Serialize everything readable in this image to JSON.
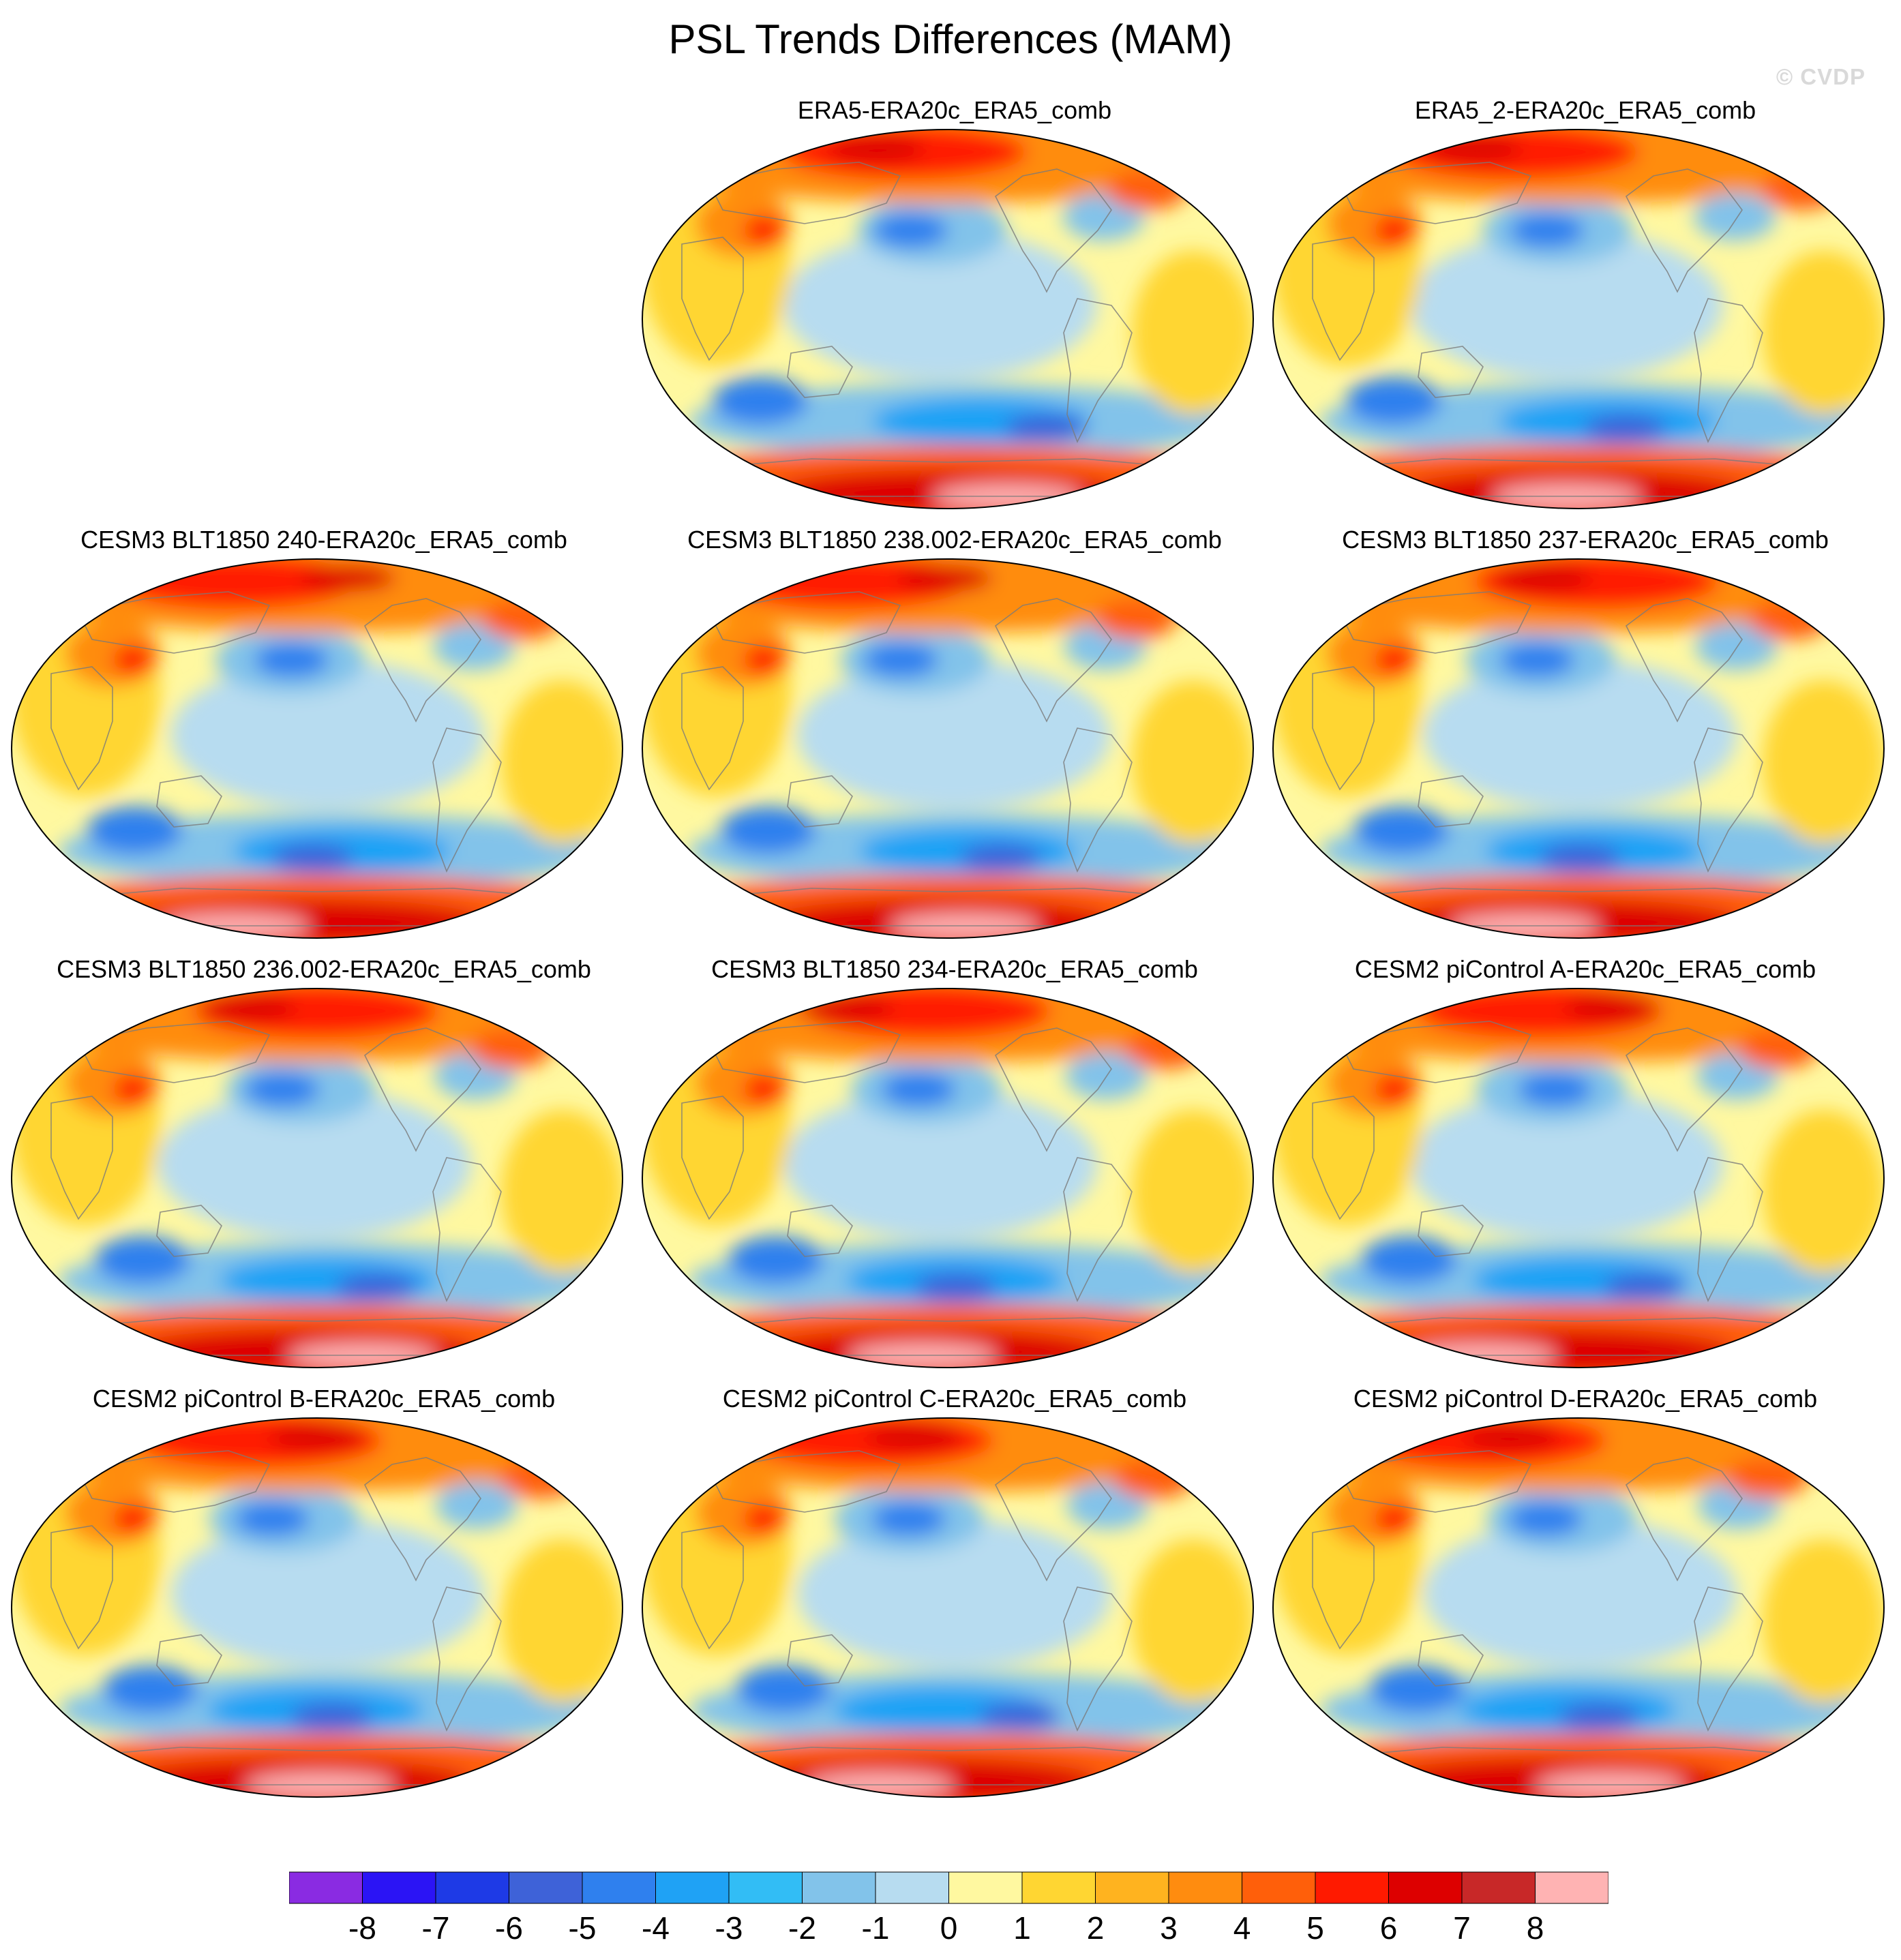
{
  "title": "PSL Trends Differences (MAM)",
  "watermark": "© CVDP",
  "panels": [
    {
      "label": "ERA5-ERA20c_ERA5_comb",
      "variant": 0
    },
    {
      "label": "ERA5_2-ERA20c_ERA5_comb",
      "variant": 1
    },
    {
      "label": "CESM3 BLT1850 240-ERA20c_ERA5_comb",
      "variant": 2
    },
    {
      "label": "CESM3 BLT1850 238.002-ERA20c_ERA5_comb",
      "variant": 3
    },
    {
      "label": "CESM3 BLT1850 237-ERA20c_ERA5_comb",
      "variant": 4
    },
    {
      "label": "CESM3 BLT1850 236.002-ERA20c_ERA5_comb",
      "variant": 5
    },
    {
      "label": "CESM3 BLT1850 234-ERA20c_ERA5_comb",
      "variant": 6
    },
    {
      "label": "CESM2 piControl A-ERA20c_ERA5_comb",
      "variant": 7
    },
    {
      "label": "CESM2 piControl B-ERA20c_ERA5_comb",
      "variant": 8
    },
    {
      "label": "CESM2 piControl C-ERA20c_ERA5_comb",
      "variant": 9
    },
    {
      "label": "CESM2 piControl D-ERA20c_ERA5_comb",
      "variant": 10
    }
  ],
  "colorbar": {
    "colors": [
      "#8a2be2",
      "#2b14f5",
      "#1e3ae6",
      "#3e62d8",
      "#2f80ee",
      "#1fa2f5",
      "#32bdf5",
      "#82c3ea",
      "#b7dcf0",
      "#fff8a0",
      "#ffd632",
      "#ffb31f",
      "#ff8c0f",
      "#ff5f0a",
      "#ff1a00",
      "#dd0000",
      "#c82828",
      "#ffb3b3"
    ],
    "tick_labels": [
      "-8",
      "-7",
      "-6",
      "-5",
      "-4",
      "-3",
      "-2",
      "-1",
      "0",
      "1",
      "2",
      "3",
      "4",
      "5",
      "6",
      "7",
      "8"
    ]
  }
}
